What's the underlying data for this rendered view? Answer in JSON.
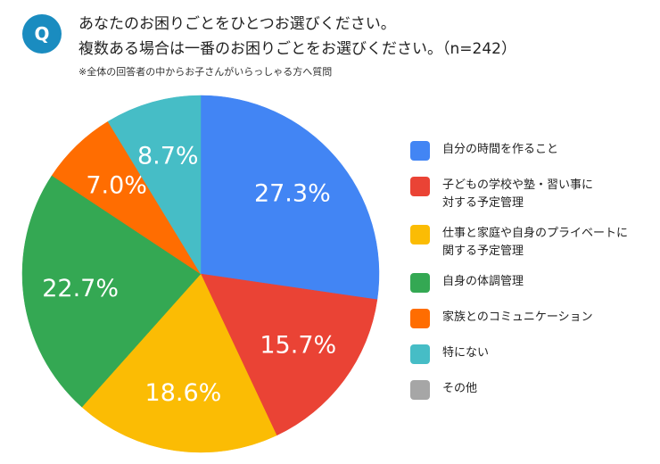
{
  "header": {
    "icon": "Q",
    "title_lines": [
      "あなたのお困りごとをひとつお選びください。",
      "複数ある場合は一番のお困りごとをお選びください。（n=242）"
    ],
    "note": "※全体の回答者の中からお子さんがいらっしゃる方へ質問"
  },
  "chart_data": {
    "type": "pie",
    "categories": [
      "自分の時間を作ること",
      "子どもの学校や塾・習い事に\n対する予定管理",
      "仕事と家庭や自身のプライベートに\n関する予定管理",
      "自身の体調管理",
      "家族とのコミュニケーション",
      "特にない",
      "その他"
    ],
    "values": [
      27.3,
      15.7,
      18.6,
      22.7,
      7.0,
      8.7,
      0
    ],
    "value_labels": [
      "27.3%",
      "15.7%",
      "18.6%",
      "22.7%",
      "7.0%",
      "8.7%",
      null
    ],
    "colors": [
      "#4285f4",
      "#ea4335",
      "#fbbc04",
      "#34a853",
      "#ff6d01",
      "#46bdc6",
      "#a6a6a6"
    ],
    "legend": "right"
  }
}
